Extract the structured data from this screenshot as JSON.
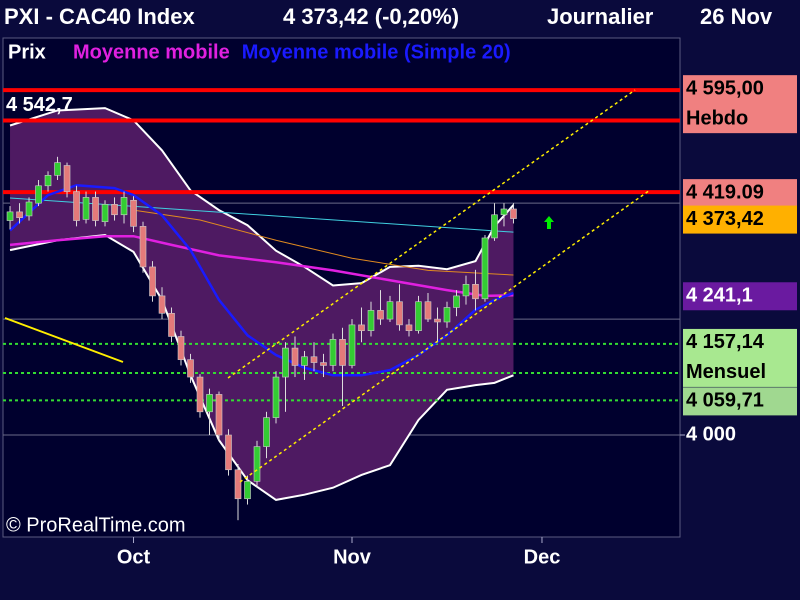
{
  "chart_data": {
    "type": "candlestick",
    "title": "PXI - CAC40 Index",
    "last": "4 373,42 (-0,20%)",
    "period": "Journalier",
    "date": "26 Nov",
    "watermark": "© ProRealTime.com",
    "xlim": [
      -0.74,
      70.53
    ],
    "ylim": [
      3824,
      4685
    ],
    "xticks": [
      {
        "value": 13,
        "label": "Oct"
      },
      {
        "value": 36,
        "label": "Nov"
      },
      {
        "value": 56,
        "label": "Dec"
      }
    ],
    "yticks": [
      {
        "value": 4000,
        "label": "4 000"
      }
    ],
    "ygrid": [
      4000,
      4200,
      4400
    ],
    "candles": {
      "name": "Prix",
      "up_color": "#33cc33",
      "down_color": "#e47a7a",
      "x": [
        0,
        1,
        2,
        3,
        4,
        5,
        6,
        7,
        8,
        9,
        10,
        11,
        12,
        13,
        14,
        15,
        16,
        17,
        18,
        19,
        20,
        21,
        22,
        23,
        24,
        25,
        26,
        27,
        28,
        29,
        30,
        31,
        32,
        33,
        34,
        35,
        36,
        37,
        38,
        39,
        40,
        41,
        42,
        43,
        44,
        45,
        46,
        47,
        48,
        49,
        50,
        51,
        52,
        53
      ],
      "open": [
        4370,
        4385,
        4378,
        4400,
        4430,
        4448,
        4465,
        4420,
        4372,
        4410,
        4368,
        4398,
        4380,
        4405,
        4360,
        4290,
        4240,
        4210,
        4170,
        4130,
        4100,
        4040,
        4070,
        4000,
        3940,
        3890,
        3920,
        3980,
        4030,
        4100,
        4150,
        4120,
        4135,
        4125,
        4120,
        4165,
        4120,
        4190,
        4180,
        4215,
        4200,
        4230,
        4190,
        4180,
        4230,
        4200,
        4195,
        4220,
        4240,
        4260,
        4235,
        4340,
        4380,
        4390
      ],
      "high": [
        4395,
        4400,
        4410,
        4440,
        4455,
        4480,
        4470,
        4430,
        4420,
        4420,
        4405,
        4410,
        4420,
        4412,
        4368,
        4300,
        4255,
        4220,
        4180,
        4140,
        4105,
        4080,
        4075,
        4010,
        3950,
        3930,
        3990,
        4040,
        4110,
        4160,
        4170,
        4145,
        4160,
        4140,
        4175,
        4185,
        4200,
        4220,
        4230,
        4250,
        4240,
        4260,
        4200,
        4240,
        4245,
        4220,
        4230,
        4250,
        4275,
        4285,
        4345,
        4400,
        4400,
        4400
      ],
      "low": [
        4355,
        4365,
        4370,
        4395,
        4420,
        4440,
        4410,
        4360,
        4365,
        4360,
        4360,
        4370,
        4365,
        4350,
        4280,
        4230,
        4200,
        4160,
        4120,
        4090,
        4030,
        4000,
        3990,
        3930,
        3853,
        3880,
        3910,
        3960,
        4020,
        4040,
        4100,
        4095,
        4110,
        4100,
        4110,
        4050,
        4115,
        4160,
        4170,
        4190,
        4195,
        4180,
        4170,
        4175,
        4195,
        4160,
        4185,
        4205,
        4225,
        4215,
        4230,
        4335,
        4360,
        4365
      ],
      "close": [
        4385,
        4375,
        4402,
        4430,
        4448,
        4470,
        4420,
        4370,
        4410,
        4370,
        4398,
        4380,
        4410,
        4360,
        4290,
        4240,
        4210,
        4170,
        4130,
        4100,
        4040,
        4070,
        4000,
        3940,
        3890,
        3920,
        3980,
        4030,
        4100,
        4150,
        4120,
        4135,
        4125,
        4120,
        4165,
        4120,
        4190,
        4180,
        4215,
        4200,
        4230,
        4190,
        4180,
        4230,
        4200,
        4195,
        4220,
        4240,
        4260,
        4235,
        4340,
        4380,
        4390,
        4373.42
      ]
    },
    "bands": {
      "fill": "#4e1a62",
      "color": "#ffffff",
      "x": [
        0,
        5,
        10,
        13,
        16,
        19,
        22,
        25,
        28,
        31,
        34,
        37,
        40,
        43,
        46,
        49,
        51,
        53
      ],
      "upper": [
        4534,
        4560,
        4564,
        4543,
        4491,
        4422,
        4388,
        4362,
        4318,
        4290,
        4258,
        4262,
        4290,
        4292,
        4286,
        4300,
        4360,
        4397
      ],
      "lower": [
        4319,
        4336,
        4345,
        4316,
        4233,
        4103,
        3991,
        3922,
        3888,
        3897,
        3909,
        3931,
        3948,
        4026,
        4078,
        4086,
        4090,
        4103
      ]
    },
    "series": [
      {
        "color": "#40d0e0",
        "x": [
          0,
          53
        ],
        "values": [
          4409,
          4350
        ]
      },
      {
        "color": "#e08a20",
        "x": [
          13,
          20,
          28,
          36,
          44,
          53
        ],
        "values": [
          4388,
          4371,
          4336,
          4305,
          4284,
          4276
        ]
      },
      {
        "name": "Moyenne mobile",
        "color": "#e020e0",
        "x": [
          0,
          5,
          10,
          13,
          17,
          22,
          28,
          34,
          40,
          46,
          50,
          53
        ],
        "values": [
          4328,
          4336,
          4343,
          4343,
          4328,
          4310,
          4298,
          4284,
          4267,
          4250,
          4240,
          4241.1
        ]
      },
      {
        "name": "Moyenne mobile (Simple 20)",
        "color": "#1a1aff",
        "x": [
          0,
          4,
          7,
          11,
          13,
          16,
          19,
          22,
          25,
          28,
          31,
          34,
          37,
          40,
          43,
          46,
          49,
          51,
          53
        ],
        "values": [
          4353,
          4414,
          4431,
          4426,
          4414,
          4379,
          4319,
          4233,
          4172,
          4138,
          4116,
          4103,
          4103,
          4112,
          4138,
          4172,
          4216,
          4233,
          4245
        ]
      }
    ],
    "legend_order": [
      2,
      3
    ],
    "levels": [
      {
        "value": 4595,
        "color": "#ff0000"
      },
      {
        "value": 4542.7,
        "label": "4 542,7",
        "color": "#ff0000"
      },
      {
        "value": 4419.09,
        "color": "#ff0000"
      },
      {
        "value": 4157.14,
        "color": "#33dd33",
        "dashed": true
      },
      {
        "value": 4107,
        "color": "#33dd33",
        "dashed": true
      },
      {
        "value": 4059.71,
        "color": "#33dd33",
        "dashed": true
      }
    ],
    "price_labels": [
      {
        "value": 4595,
        "label": "4 595,00",
        "note": "Hebdo",
        "color": "#f08080",
        "text_color": "#000000"
      },
      {
        "value": 4419.09,
        "label": "4 419.09",
        "color": "#f08080",
        "text_color": "#000000"
      },
      {
        "value": 4373.42,
        "label": "4 373,42",
        "color": "#ffb000",
        "text_color": "#000000"
      },
      {
        "value": 4241.1,
        "label": "4 241,1",
        "color": "#6a1aa0",
        "text_color": "#ffffff"
      },
      {
        "value": 4157.14,
        "label": "4 157,14",
        "note": "Mensuel",
        "color": "#a8e890",
        "text_color": "#000000"
      },
      {
        "value": 4059.71,
        "label": "4 059,71",
        "color": "#a0d890",
        "text_color": "#000000"
      }
    ]
  }
}
